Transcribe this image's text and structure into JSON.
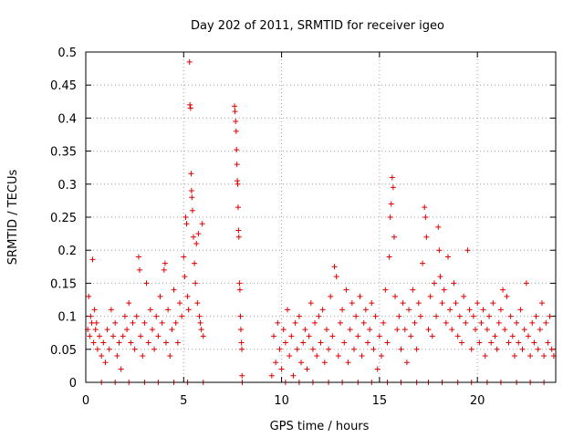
{
  "chart_data": {
    "type": "scatter",
    "title": "Day 202 of 2011, SRMTID for receiver igeo",
    "xlabel": "GPS time / hours",
    "ylabel": "SRMTID / TECUs",
    "xlim": [
      0,
      24
    ],
    "ylim": [
      0,
      0.5
    ],
    "x_ticks": [
      0,
      5,
      10,
      15,
      20
    ],
    "y_ticks": [
      0,
      0.05,
      0.1,
      0.15,
      0.2,
      0.25,
      0.3,
      0.35,
      0.4,
      0.45,
      0.5
    ],
    "x_tick_labels": [
      "0",
      "5",
      "10",
      "15",
      "20"
    ],
    "y_tick_labels": [
      "0",
      "0.05",
      "0.1",
      "0.15",
      "0.2",
      "0.25",
      "0.3",
      "0.35",
      "0.4",
      "0.45",
      "0.5"
    ],
    "grid": true,
    "marker": "+",
    "color": "#e00000",
    "series": [
      {
        "name": "SRMTID",
        "points": [
          [
            0.1,
            0.08
          ],
          [
            0.15,
            0.13
          ],
          [
            0.2,
            0.07
          ],
          [
            0.25,
            0.1
          ],
          [
            0.3,
            0.09
          ],
          [
            0.35,
            0.186
          ],
          [
            0.4,
            0.06
          ],
          [
            0.45,
            0.11
          ],
          [
            0.5,
            0.08
          ],
          [
            0.55,
            0.09
          ],
          [
            0.6,
            0.05
          ],
          [
            0.7,
            0.07
          ],
          [
            0.8,
            0.04
          ],
          [
            0.9,
            0.06
          ],
          [
            1.0,
            0.03
          ],
          [
            1.1,
            0.08
          ],
          [
            1.2,
            0.05
          ],
          [
            1.3,
            0.11
          ],
          [
            1.4,
            0.07
          ],
          [
            1.5,
            0.09
          ],
          [
            1.6,
            0.04
          ],
          [
            1.7,
            0.06
          ],
          [
            1.8,
            0.02
          ],
          [
            1.9,
            0.07
          ],
          [
            2.0,
            0.1
          ],
          [
            2.1,
            0.08
          ],
          [
            2.2,
            0.12
          ],
          [
            2.3,
            0.06
          ],
          [
            2.4,
            0.09
          ],
          [
            2.5,
            0.05
          ],
          [
            2.6,
            0.1
          ],
          [
            2.7,
            0.19
          ],
          [
            2.75,
            0.17
          ],
          [
            2.8,
            0.07
          ],
          [
            2.9,
            0.04
          ],
          [
            3.0,
            0.09
          ],
          [
            3.1,
            0.15
          ],
          [
            3.2,
            0.06
          ],
          [
            3.3,
            0.11
          ],
          [
            3.4,
            0.08
          ],
          [
            3.5,
            0.05
          ],
          [
            3.6,
            0.1
          ],
          [
            3.7,
            0.07
          ],
          [
            3.8,
            0.13
          ],
          [
            3.9,
            0.09
          ],
          [
            4.0,
            0.17
          ],
          [
            4.05,
            0.18
          ],
          [
            4.1,
            0.06
          ],
          [
            4.2,
            0.11
          ],
          [
            4.3,
            0.04
          ],
          [
            4.4,
            0.08
          ],
          [
            4.5,
            0.14
          ],
          [
            4.6,
            0.09
          ],
          [
            4.7,
            0.06
          ],
          [
            4.8,
            0.12
          ],
          [
            4.9,
            0.1
          ],
          [
            5.0,
            0.19
          ],
          [
            5.05,
            0.16
          ],
          [
            5.1,
            0.25
          ],
          [
            5.15,
            0.24
          ],
          [
            5.2,
            0.13
          ],
          [
            5.25,
            0.11
          ],
          [
            5.3,
            0.485
          ],
          [
            5.32,
            0.42
          ],
          [
            5.35,
            0.415
          ],
          [
            5.38,
            0.316
          ],
          [
            5.4,
            0.29
          ],
          [
            5.42,
            0.28
          ],
          [
            5.45,
            0.26
          ],
          [
            5.5,
            0.22
          ],
          [
            5.55,
            0.18
          ],
          [
            5.6,
            0.15
          ],
          [
            5.65,
            0.21
          ],
          [
            5.7,
            0.12
          ],
          [
            5.75,
            0.225
          ],
          [
            5.8,
            0.1
          ],
          [
            5.85,
            0.09
          ],
          [
            5.9,
            0.08
          ],
          [
            5.95,
            0.24
          ],
          [
            6.0,
            0.07
          ],
          [
            7.6,
            0.418
          ],
          [
            7.62,
            0.41
          ],
          [
            7.65,
            0.395
          ],
          [
            7.68,
            0.38
          ],
          [
            7.7,
            0.352
          ],
          [
            7.72,
            0.33
          ],
          [
            7.74,
            0.305
          ],
          [
            7.76,
            0.3
          ],
          [
            7.78,
            0.265
          ],
          [
            7.8,
            0.23
          ],
          [
            7.82,
            0.22
          ],
          [
            7.85,
            0.15
          ],
          [
            7.87,
            0.14
          ],
          [
            7.9,
            0.1
          ],
          [
            7.92,
            0.08
          ],
          [
            7.95,
            0.06
          ],
          [
            7.97,
            0.05
          ],
          [
            7.98,
            0.01
          ],
          [
            7.99,
            0.0
          ],
          [
            9.5,
            0.01
          ],
          [
            9.6,
            0.07
          ],
          [
            9.7,
            0.03
          ],
          [
            9.8,
            0.09
          ],
          [
            9.9,
            0.05
          ],
          [
            10.0,
            0.02
          ],
          [
            10.1,
            0.08
          ],
          [
            10.2,
            0.06
          ],
          [
            10.3,
            0.11
          ],
          [
            10.4,
            0.04
          ],
          [
            10.5,
            0.07
          ],
          [
            10.6,
            0.01
          ],
          [
            10.7,
            0.09
          ],
          [
            10.8,
            0.05
          ],
          [
            10.9,
            0.1
          ],
          [
            11.0,
            0.03
          ],
          [
            11.1,
            0.06
          ],
          [
            11.2,
            0.08
          ],
          [
            11.3,
            0.02
          ],
          [
            11.4,
            0.07
          ],
          [
            11.5,
            0.12
          ],
          [
            11.6,
            0.05
          ],
          [
            11.7,
            0.09
          ],
          [
            11.8,
            0.04
          ],
          [
            11.9,
            0.1
          ],
          [
            12.0,
            0.06
          ],
          [
            12.1,
            0.11
          ],
          [
            12.2,
            0.03
          ],
          [
            12.3,
            0.08
          ],
          [
            12.4,
            0.05
          ],
          [
            12.5,
            0.13
          ],
          [
            12.6,
            0.07
          ],
          [
            12.7,
            0.175
          ],
          [
            12.8,
            0.16
          ],
          [
            12.9,
            0.04
          ],
          [
            13.0,
            0.09
          ],
          [
            13.1,
            0.11
          ],
          [
            13.2,
            0.06
          ],
          [
            13.3,
            0.14
          ],
          [
            13.4,
            0.03
          ],
          [
            13.5,
            0.08
          ],
          [
            13.6,
            0.12
          ],
          [
            13.7,
            0.05
          ],
          [
            13.8,
            0.1
          ],
          [
            13.9,
            0.07
          ],
          [
            14.0,
            0.13
          ],
          [
            14.1,
            0.04
          ],
          [
            14.2,
            0.09
          ],
          [
            14.3,
            0.11
          ],
          [
            14.4,
            0.06
          ],
          [
            14.5,
            0.08
          ],
          [
            14.6,
            0.12
          ],
          [
            14.7,
            0.05
          ],
          [
            14.8,
            0.1
          ],
          [
            14.9,
            0.02
          ],
          [
            15.0,
            0.07
          ],
          [
            15.1,
            0.04
          ],
          [
            15.2,
            0.09
          ],
          [
            15.3,
            0.14
          ],
          [
            15.4,
            0.06
          ],
          [
            15.5,
            0.19
          ],
          [
            15.55,
            0.25
          ],
          [
            15.6,
            0.27
          ],
          [
            15.65,
            0.31
          ],
          [
            15.7,
            0.295
          ],
          [
            15.75,
            0.22
          ],
          [
            15.8,
            0.13
          ],
          [
            15.9,
            0.08
          ],
          [
            16.0,
            0.1
          ],
          [
            16.1,
            0.05
          ],
          [
            16.2,
            0.12
          ],
          [
            16.3,
            0.08
          ],
          [
            16.4,
            0.03
          ],
          [
            16.5,
            0.11
          ],
          [
            16.6,
            0.07
          ],
          [
            16.7,
            0.14
          ],
          [
            16.8,
            0.09
          ],
          [
            16.9,
            0.05
          ],
          [
            17.0,
            0.12
          ],
          [
            17.1,
            0.1
          ],
          [
            17.2,
            0.18
          ],
          [
            17.3,
            0.265
          ],
          [
            17.35,
            0.25
          ],
          [
            17.4,
            0.22
          ],
          [
            17.5,
            0.08
          ],
          [
            17.6,
            0.13
          ],
          [
            17.7,
            0.07
          ],
          [
            17.8,
            0.15
          ],
          [
            17.9,
            0.1
          ],
          [
            18.0,
            0.235
          ],
          [
            18.05,
            0.2
          ],
          [
            18.1,
            0.16
          ],
          [
            18.2,
            0.12
          ],
          [
            18.3,
            0.14
          ],
          [
            18.4,
            0.09
          ],
          [
            18.5,
            0.19
          ],
          [
            18.6,
            0.11
          ],
          [
            18.7,
            0.08
          ],
          [
            18.8,
            0.15
          ],
          [
            18.9,
            0.12
          ],
          [
            19.0,
            0.07
          ],
          [
            19.1,
            0.1
          ],
          [
            19.2,
            0.06
          ],
          [
            19.3,
            0.13
          ],
          [
            19.4,
            0.09
          ],
          [
            19.5,
            0.2
          ],
          [
            19.6,
            0.11
          ],
          [
            19.7,
            0.05
          ],
          [
            19.8,
            0.1
          ],
          [
            19.9,
            0.08
          ],
          [
            20.0,
            0.12
          ],
          [
            20.1,
            0.06
          ],
          [
            20.2,
            0.09
          ],
          [
            20.3,
            0.11
          ],
          [
            20.4,
            0.04
          ],
          [
            20.5,
            0.08
          ],
          [
            20.6,
            0.1
          ],
          [
            20.7,
            0.06
          ],
          [
            20.8,
            0.12
          ],
          [
            20.9,
            0.07
          ],
          [
            21.0,
            0.05
          ],
          [
            21.1,
            0.09
          ],
          [
            21.2,
            0.11
          ],
          [
            21.3,
            0.14
          ],
          [
            21.4,
            0.08
          ],
          [
            21.5,
            0.13
          ],
          [
            21.6,
            0.06
          ],
          [
            21.7,
            0.1
          ],
          [
            21.8,
            0.07
          ],
          [
            21.9,
            0.04
          ],
          [
            22.0,
            0.09
          ],
          [
            22.1,
            0.06
          ],
          [
            22.2,
            0.11
          ],
          [
            22.3,
            0.05
          ],
          [
            22.4,
            0.08
          ],
          [
            22.5,
            0.15
          ],
          [
            22.6,
            0.07
          ],
          [
            22.7,
            0.04
          ],
          [
            22.8,
            0.09
          ],
          [
            22.9,
            0.06
          ],
          [
            23.0,
            0.1
          ],
          [
            23.1,
            0.05
          ],
          [
            23.2,
            0.08
          ],
          [
            23.3,
            0.12
          ],
          [
            23.4,
            0.04
          ],
          [
            23.5,
            0.09
          ],
          [
            23.6,
            0.06
          ],
          [
            23.7,
            0.1
          ],
          [
            23.8,
            0.05
          ],
          [
            23.9,
            0.04
          ],
          [
            0.8,
            0.0
          ],
          [
            1.5,
            0.0
          ],
          [
            2.2,
            0.0
          ],
          [
            3.0,
            0.0
          ],
          [
            3.7,
            0.0
          ],
          [
            4.5,
            0.0
          ],
          [
            5.2,
            0.0
          ],
          [
            6.0,
            0.0
          ],
          [
            10.2,
            0.0
          ],
          [
            10.9,
            0.0
          ],
          [
            11.6,
            0.0
          ],
          [
            12.4,
            0.0
          ],
          [
            13.1,
            0.0
          ],
          [
            13.9,
            0.0
          ],
          [
            14.6,
            0.0
          ],
          [
            15.4,
            0.0
          ],
          [
            16.1,
            0.0
          ],
          [
            16.9,
            0.0
          ],
          [
            17.5,
            0.0
          ],
          [
            18.2,
            0.0
          ],
          [
            19.0,
            0.0
          ],
          [
            19.7,
            0.0
          ],
          [
            20.5,
            0.0
          ],
          [
            21.2,
            0.0
          ],
          [
            22.0,
            0.0
          ],
          [
            22.7,
            0.0
          ],
          [
            23.4,
            0.0
          ]
        ]
      }
    ]
  }
}
